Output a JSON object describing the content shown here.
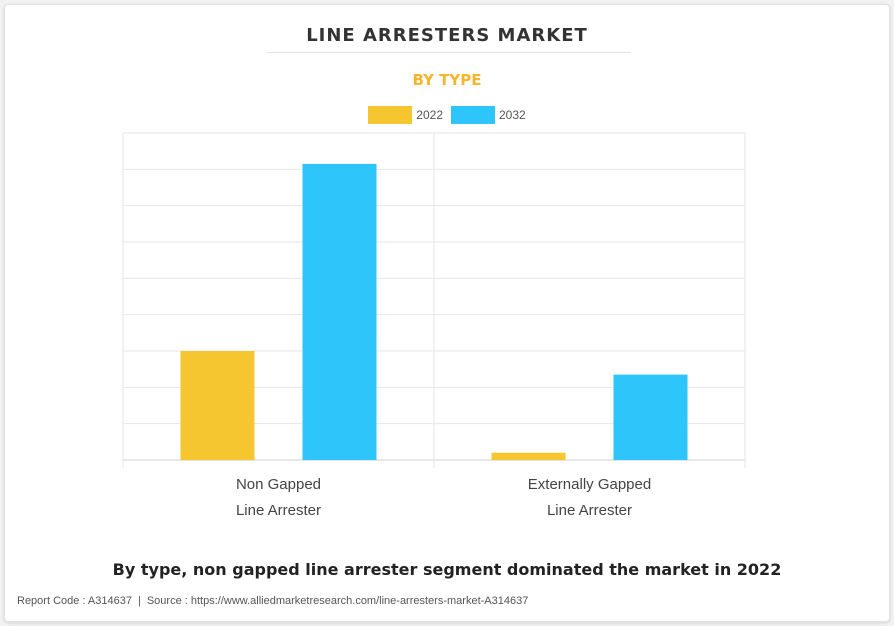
{
  "header": {
    "title": "LINE ARRESTERS MARKET",
    "subtitle": "BY TYPE"
  },
  "caption": "By type, non gapped line arrester segment dominated the market in 2022",
  "footer": {
    "report_code": "Report Code : A314637",
    "separator": "|",
    "source": "Source : https://www.alliedmarketresearch.com/line-arresters-market-A314637"
  },
  "colors": {
    "series_2022": "#f5c630",
    "series_2032": "#2ec5fb",
    "subtitle": "#f7b52c"
  },
  "chart_data": {
    "type": "bar",
    "title": "LINE ARRESTERS MARKET",
    "subtitle": "BY TYPE",
    "categories": [
      [
        "Non Gapped",
        "Line Arrester"
      ],
      [
        "Externally Gapped",
        "Line Arrester"
      ]
    ],
    "series": [
      {
        "name": "2022",
        "color": "#f5c630",
        "values": [
          30,
          2
        ]
      },
      {
        "name": "2032",
        "color": "#2ec5fb",
        "values": [
          81.5,
          23.5
        ]
      }
    ],
    "ylim": [
      0,
      90
    ],
    "grid": true,
    "y_tick_labels_shown": false,
    "legend": "top-center"
  }
}
